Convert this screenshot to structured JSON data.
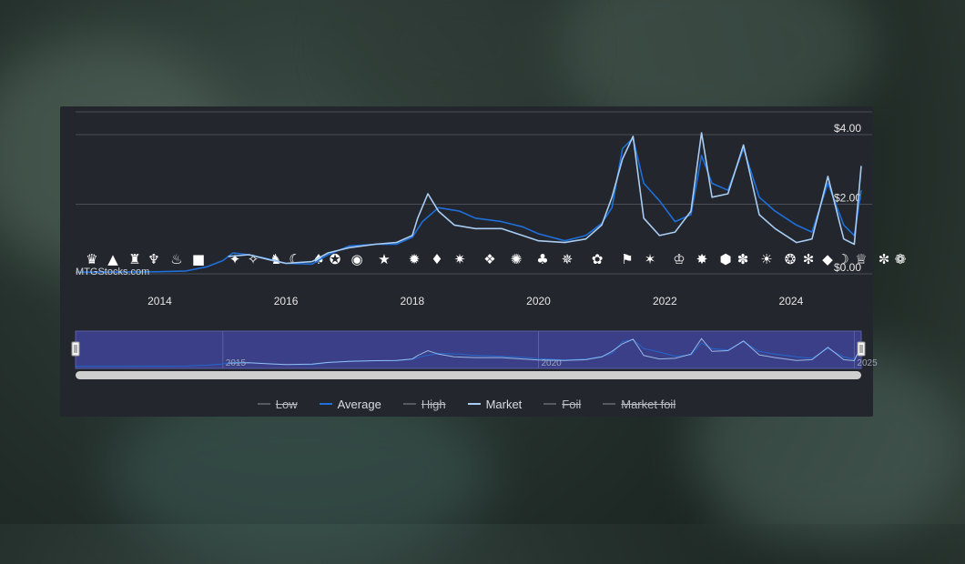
{
  "page": {
    "credits": "MTGStocks.com"
  },
  "chart_data": {
    "type": "line",
    "x_axis": {
      "type": "date",
      "range": [
        "2012-09-01",
        "2025-02-10"
      ],
      "ticks": [
        "2014",
        "2016",
        "2018",
        "2020",
        "2022",
        "2024"
      ]
    },
    "y_axis": {
      "position": "right",
      "range": [
        0,
        4.6
      ],
      "ticks": [
        {
          "value": 0,
          "label": "$0.00"
        },
        {
          "value": 2,
          "label": "$2.00"
        },
        {
          "value": 4,
          "label": "$4.00"
        }
      ],
      "grid": true
    },
    "series": [
      {
        "name": "Average",
        "color": "#1e6fd9",
        "points": [
          [
            "2012-09-01",
            0.05
          ],
          [
            "2013-06-01",
            0.05
          ],
          [
            "2014-01-01",
            0.06
          ],
          [
            "2014-06-01",
            0.08
          ],
          [
            "2014-10-01",
            0.2
          ],
          [
            "2015-01-01",
            0.38
          ],
          [
            "2015-03-01",
            0.6
          ],
          [
            "2015-06-01",
            0.55
          ],
          [
            "2015-09-01",
            0.45
          ],
          [
            "2016-01-01",
            0.3
          ],
          [
            "2016-06-01",
            0.28
          ],
          [
            "2016-09-01",
            0.55
          ],
          [
            "2017-01-01",
            0.8
          ],
          [
            "2017-06-01",
            0.85
          ],
          [
            "2017-10-01",
            0.85
          ],
          [
            "2018-01-01",
            1.05
          ],
          [
            "2018-03-01",
            1.5
          ],
          [
            "2018-06-01",
            1.9
          ],
          [
            "2018-10-01",
            1.8
          ],
          [
            "2019-01-01",
            1.6
          ],
          [
            "2019-06-01",
            1.5
          ],
          [
            "2019-10-01",
            1.35
          ],
          [
            "2020-01-01",
            1.15
          ],
          [
            "2020-06-01",
            0.95
          ],
          [
            "2020-10-01",
            1.1
          ],
          [
            "2021-01-01",
            1.45
          ],
          [
            "2021-03-01",
            1.9
          ],
          [
            "2021-05-01",
            3.6
          ],
          [
            "2021-07-01",
            3.9
          ],
          [
            "2021-09-01",
            2.6
          ],
          [
            "2021-12-01",
            2.1
          ],
          [
            "2022-03-01",
            1.5
          ],
          [
            "2022-06-01",
            1.7
          ],
          [
            "2022-08-01",
            3.4
          ],
          [
            "2022-10-01",
            2.6
          ],
          [
            "2023-01-01",
            2.4
          ],
          [
            "2023-04-01",
            3.6
          ],
          [
            "2023-07-01",
            2.2
          ],
          [
            "2023-10-01",
            1.8
          ],
          [
            "2024-02-01",
            1.4
          ],
          [
            "2024-05-01",
            1.2
          ],
          [
            "2024-08-01",
            2.6
          ],
          [
            "2024-11-01",
            1.4
          ],
          [
            "2025-01-01",
            1.1
          ],
          [
            "2025-02-10",
            2.4
          ]
        ]
      },
      {
        "name": "Market",
        "color": "#a9cdf2",
        "points": [
          [
            "2015-02-01",
            0.5
          ],
          [
            "2015-06-01",
            0.55
          ],
          [
            "2015-10-01",
            0.4
          ],
          [
            "2016-01-01",
            0.3
          ],
          [
            "2016-06-01",
            0.35
          ],
          [
            "2016-09-01",
            0.6
          ],
          [
            "2017-01-01",
            0.75
          ],
          [
            "2017-06-01",
            0.85
          ],
          [
            "2017-10-01",
            0.9
          ],
          [
            "2018-01-01",
            1.1
          ],
          [
            "2018-02-01",
            1.6
          ],
          [
            "2018-04-01",
            2.3
          ],
          [
            "2018-06-01",
            1.8
          ],
          [
            "2018-09-01",
            1.4
          ],
          [
            "2019-01-01",
            1.3
          ],
          [
            "2019-06-01",
            1.3
          ],
          [
            "2019-10-01",
            1.1
          ],
          [
            "2020-01-01",
            0.95
          ],
          [
            "2020-06-01",
            0.9
          ],
          [
            "2020-10-01",
            1.0
          ],
          [
            "2021-01-01",
            1.4
          ],
          [
            "2021-03-01",
            2.2
          ],
          [
            "2021-05-01",
            3.3
          ],
          [
            "2021-07-01",
            3.95
          ],
          [
            "2021-09-01",
            1.6
          ],
          [
            "2021-12-01",
            1.1
          ],
          [
            "2022-03-01",
            1.2
          ],
          [
            "2022-06-01",
            1.8
          ],
          [
            "2022-08-01",
            4.05
          ],
          [
            "2022-10-01",
            2.2
          ],
          [
            "2023-01-01",
            2.3
          ],
          [
            "2023-04-01",
            3.7
          ],
          [
            "2023-07-01",
            1.7
          ],
          [
            "2023-10-01",
            1.3
          ],
          [
            "2024-02-01",
            0.9
          ],
          [
            "2024-05-01",
            1.0
          ],
          [
            "2024-08-01",
            2.8
          ],
          [
            "2024-11-01",
            1.0
          ],
          [
            "2025-01-01",
            0.85
          ],
          [
            "2025-02-10",
            3.1
          ]
        ]
      }
    ],
    "navigator": {
      "range": [
        "2012-09-01",
        "2025-02-10"
      ],
      "labels": [
        "2015",
        "2020",
        "2025"
      ]
    },
    "legend": {
      "placement": "bottom-center",
      "items": [
        {
          "name": "Low",
          "color": "#555a63",
          "visible": false
        },
        {
          "name": "Average",
          "color": "#1e6fd9",
          "visible": true
        },
        {
          "name": "High",
          "color": "#555a63",
          "visible": false
        },
        {
          "name": "Market",
          "color": "#a9cdf2",
          "visible": true
        },
        {
          "name": "Foil",
          "color": "#555a63",
          "visible": false
        },
        {
          "name": "Market foil",
          "color": "#555a63",
          "visible": false
        }
      ]
    },
    "set_icons": [
      "planeswalker",
      "mountain",
      "crown",
      "trident",
      "flame",
      "m15",
      "shuriken",
      "swirl",
      "dragon",
      "moon",
      "horns",
      "hammer",
      "eye",
      "star",
      "claw",
      "shield"
    ]
  }
}
